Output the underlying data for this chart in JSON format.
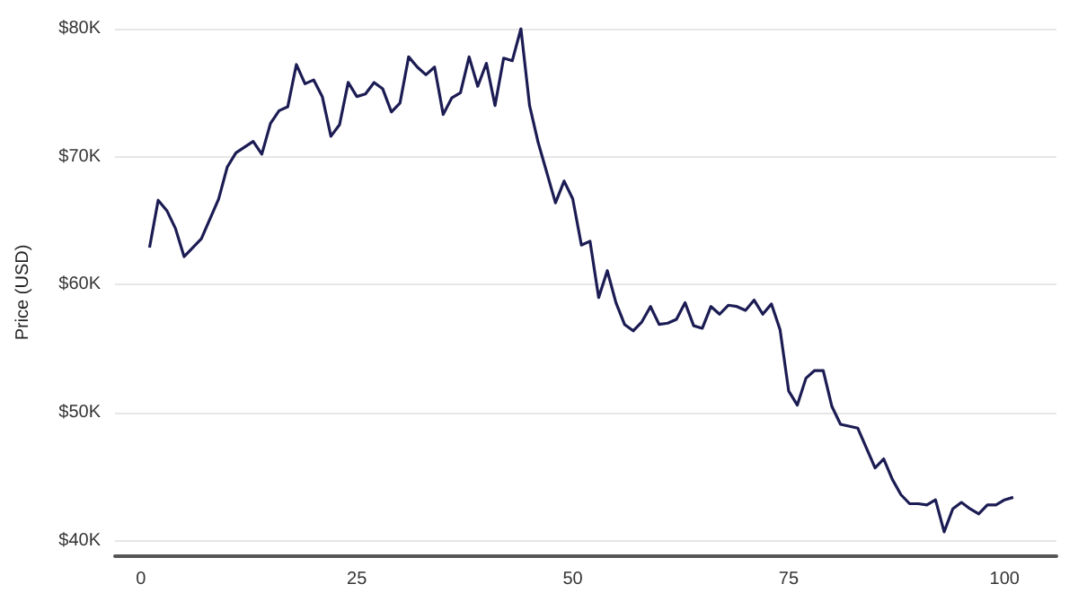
{
  "chart_data": {
    "type": "line",
    "ylabel": "Price (USD)",
    "x": [
      1,
      2,
      3,
      4,
      5,
      7,
      9,
      10,
      11,
      13,
      14,
      15,
      16,
      17,
      18,
      19,
      20,
      21,
      22,
      23,
      24,
      25,
      26,
      27,
      28,
      29,
      30,
      31,
      32,
      33,
      34,
      35,
      36,
      37,
      38,
      39,
      40,
      41,
      42,
      43,
      44,
      45,
      46,
      48,
      49,
      50,
      51,
      52,
      53,
      54,
      55,
      56,
      57,
      58,
      59,
      60,
      61,
      62,
      63,
      64,
      65,
      66,
      67,
      68,
      69,
      70,
      71,
      72,
      73,
      74,
      75,
      76,
      77,
      78,
      79,
      80,
      81,
      83,
      85,
      86,
      87,
      88,
      89,
      90,
      91,
      92,
      93,
      94,
      95,
      96,
      97,
      98,
      99,
      100,
      101
    ],
    "series": [
      {
        "color": "#1c1c54",
        "values": [
          62900,
          66600,
          65800,
          64400,
          62200,
          63600,
          66700,
          69200,
          70300,
          71200,
          70200,
          72600,
          73600,
          73900,
          77200,
          75700,
          76000,
          74700,
          71600,
          72500,
          75800,
          74700,
          74900,
          75800,
          75300,
          73500,
          74200,
          77800,
          77000,
          76400,
          77000,
          73300,
          74600,
          75000,
          77800,
          75500,
          77300,
          74000,
          77700,
          77500,
          80000,
          74000,
          71100,
          66400,
          68100,
          66700,
          63100,
          63400,
          59000,
          61100,
          58600,
          56900,
          56400,
          57100,
          58300,
          56900,
          57000,
          57300,
          58600,
          56800,
          56600,
          58300,
          57700,
          58400,
          58300,
          58000,
          58800,
          57700,
          58500,
          56500,
          51700,
          50600,
          52700,
          53300,
          53300,
          50500,
          49100,
          48800,
          45700,
          46400,
          44800,
          43600,
          42900,
          42900,
          42800,
          43200,
          40700,
          42500,
          43000,
          42500,
          42100,
          42800,
          42800,
          43200,
          43400
        ]
      }
    ],
    "xlim": [
      -3,
      106
    ],
    "xticks": [
      0,
      25,
      50,
      75,
      100
    ],
    "ylim": [
      38800,
      80000
    ],
    "yticks": [
      {
        "value": 40000,
        "label": "$40K"
      },
      {
        "value": 50000,
        "label": "$50K"
      },
      {
        "value": 60000,
        "label": "$60K"
      },
      {
        "value": 70000,
        "label": "$70K"
      },
      {
        "value": 80000,
        "label": "$80K"
      }
    ],
    "grid": "y",
    "marker": "none",
    "line_style": "solid"
  }
}
